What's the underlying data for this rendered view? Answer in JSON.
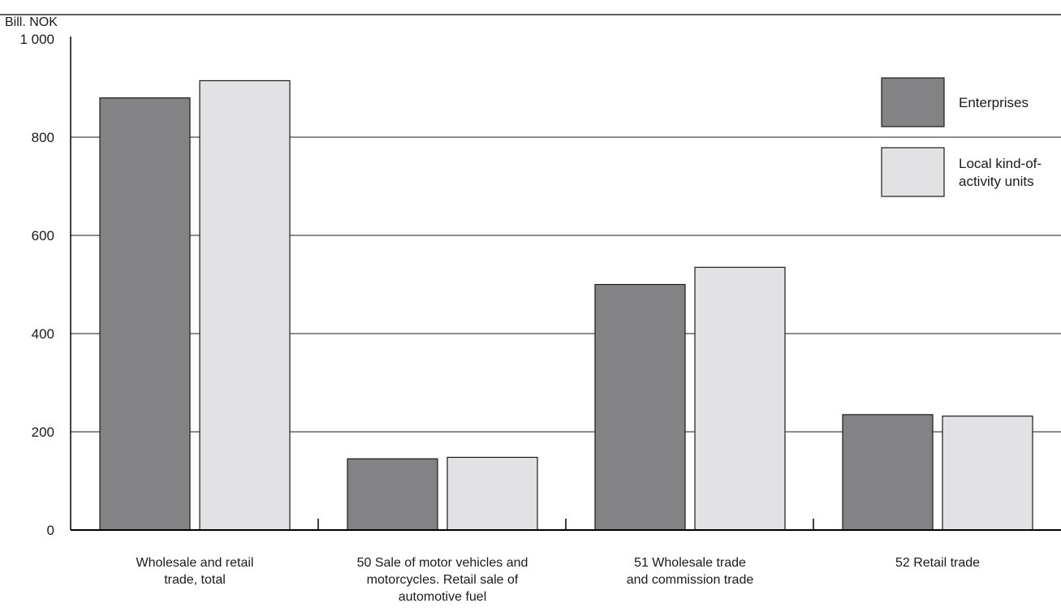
{
  "chart_data": {
    "type": "bar",
    "unit_label": "Bill. NOK",
    "categories": [
      [
        "Wholesale and retail",
        "trade, total"
      ],
      [
        "50 Sale of motor vehicles and",
        "motorcycles. Retail sale of",
        "automotive fuel"
      ],
      [
        "51 Wholesale trade",
        "and commission trade"
      ],
      [
        "52 Retail trade"
      ]
    ],
    "series": [
      {
        "name": "Enterprises",
        "color": "#838386",
        "values": [
          880,
          145,
          500,
          235
        ]
      },
      {
        "name": "Local kind-of-activity units",
        "legend_lines": [
          "Local kind-of-",
          "activity units"
        ],
        "color": "#e2e2e4",
        "values": [
          915,
          148,
          535,
          232
        ]
      }
    ],
    "yticks": [
      0,
      200,
      400,
      600,
      800,
      "1 000"
    ],
    "ylim": [
      0,
      1000
    ],
    "grid": true,
    "legend_position": "top-right"
  }
}
